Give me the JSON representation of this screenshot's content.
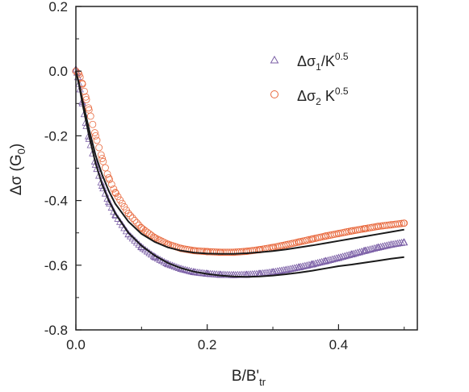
{
  "chart_data": {
    "type": "scatter",
    "title": "",
    "xlabel": {
      "main": "B/B'",
      "sub": "tr"
    },
    "ylabel": {
      "main": "Δσ (G",
      "sub": "0",
      "tail": ")"
    },
    "xlim": [
      0.0,
      0.52
    ],
    "ylim": [
      -0.8,
      0.2
    ],
    "xticks": [
      0.0,
      0.2,
      0.4
    ],
    "xtick_labels": [
      "0.0",
      "0.2",
      "0.4"
    ],
    "yticks": [
      0.2,
      0.0,
      -0.2,
      -0.4,
      -0.6,
      -0.8
    ],
    "ytick_labels": [
      "0.2",
      "0.0",
      "-0.2",
      "-0.4",
      "-0.6",
      "-0.8"
    ],
    "grid": false,
    "legend_position": "top-right",
    "series": [
      {
        "legend": {
          "a": "Δσ",
          "b": "1",
          "c": "/K",
          "d": "0.5"
        },
        "marker": "triangle-open",
        "color": "#7b5fa6",
        "x": [
          0.0,
          0.002,
          0.005,
          0.01,
          0.015,
          0.02,
          0.03,
          0.04,
          0.05,
          0.06,
          0.08,
          0.1,
          0.12,
          0.14,
          0.16,
          0.18,
          0.2,
          0.22,
          0.24,
          0.26,
          0.28,
          0.3,
          0.32,
          0.34,
          0.36,
          0.38,
          0.4,
          0.42,
          0.44,
          0.46,
          0.48,
          0.5
        ],
        "y": [
          0.005,
          -0.005,
          -0.04,
          -0.1,
          -0.16,
          -0.21,
          -0.29,
          -0.355,
          -0.405,
          -0.445,
          -0.505,
          -0.545,
          -0.575,
          -0.597,
          -0.612,
          -0.622,
          -0.627,
          -0.63,
          -0.631,
          -0.63,
          -0.627,
          -0.622,
          -0.615,
          -0.607,
          -0.598,
          -0.588,
          -0.578,
          -0.567,
          -0.556,
          -0.546,
          -0.537,
          -0.53
        ]
      },
      {
        "legend": {
          "a": "Δσ",
          "b": "2",
          "c": " K",
          "d": "0.5"
        },
        "marker": "circle-open",
        "color": "#e8693e",
        "x": [
          0.0,
          0.005,
          0.01,
          0.015,
          0.02,
          0.03,
          0.04,
          0.05,
          0.06,
          0.08,
          0.1,
          0.12,
          0.14,
          0.16,
          0.18,
          0.2,
          0.22,
          0.24,
          0.26,
          0.28,
          0.3,
          0.32,
          0.34,
          0.36,
          0.38,
          0.4,
          0.42,
          0.44,
          0.46,
          0.48,
          0.5
        ],
        "y": [
          0.0,
          -0.01,
          -0.04,
          -0.08,
          -0.12,
          -0.2,
          -0.27,
          -0.33,
          -0.375,
          -0.44,
          -0.485,
          -0.515,
          -0.535,
          -0.548,
          -0.555,
          -0.558,
          -0.56,
          -0.56,
          -0.557,
          -0.552,
          -0.545,
          -0.537,
          -0.528,
          -0.519,
          -0.51,
          -0.502,
          -0.494,
          -0.487,
          -0.48,
          -0.475,
          -0.47
        ]
      }
    ],
    "fit_lines": [
      {
        "color": "#1a1a1a",
        "x": [
          0.0,
          0.005,
          0.01,
          0.02,
          0.03,
          0.04,
          0.05,
          0.06,
          0.08,
          0.1,
          0.12,
          0.14,
          0.16,
          0.18,
          0.2,
          0.22,
          0.24,
          0.26,
          0.28,
          0.3,
          0.32,
          0.34,
          0.36,
          0.38,
          0.4,
          0.42,
          0.44,
          0.46,
          0.48,
          0.5
        ],
        "y": [
          0.0,
          -0.045,
          -0.1,
          -0.2,
          -0.285,
          -0.35,
          -0.4,
          -0.44,
          -0.5,
          -0.54,
          -0.57,
          -0.593,
          -0.609,
          -0.62,
          -0.627,
          -0.632,
          -0.635,
          -0.636,
          -0.635,
          -0.632,
          -0.628,
          -0.623,
          -0.617,
          -0.61,
          -0.603,
          -0.598,
          -0.592,
          -0.586,
          -0.58,
          -0.575
        ]
      },
      {
        "color": "#1a1a1a",
        "x": [
          0.0,
          0.005,
          0.01,
          0.02,
          0.03,
          0.04,
          0.05,
          0.06,
          0.08,
          0.1,
          0.12,
          0.14,
          0.16,
          0.18,
          0.2,
          0.22,
          0.24,
          0.26,
          0.28,
          0.3,
          0.32,
          0.34,
          0.36,
          0.38,
          0.4,
          0.42,
          0.44,
          0.46,
          0.48,
          0.5
        ],
        "y": [
          0.0,
          -0.04,
          -0.09,
          -0.18,
          -0.26,
          -0.32,
          -0.37,
          -0.41,
          -0.465,
          -0.503,
          -0.528,
          -0.545,
          -0.555,
          -0.561,
          -0.564,
          -0.565,
          -0.565,
          -0.563,
          -0.56,
          -0.556,
          -0.551,
          -0.545,
          -0.539,
          -0.532,
          -0.525,
          -0.518,
          -0.511,
          -0.504,
          -0.497,
          -0.49
        ]
      }
    ]
  }
}
